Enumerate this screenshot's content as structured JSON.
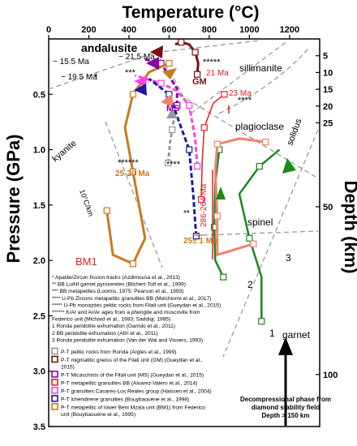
{
  "chart_data": {
    "type": "line",
    "xlabel": "Temperature (°C)",
    "ylabel": "Pressure (GPa)",
    "y2label": "Depth (km)",
    "xlim": [
      0,
      1350
    ],
    "ylim": [
      3.5,
      0
    ],
    "x_ticks": [
      "0",
      "200",
      "400",
      "600",
      "800",
      "1000",
      "1200"
    ],
    "y_ticks": [
      "0.5",
      "1.0",
      "1.5",
      "2.0",
      "2.5",
      "3.0",
      "3.5"
    ],
    "depth_ticks": [
      "5",
      "10",
      "15",
      "20",
      "25",
      "50",
      "100"
    ],
    "grid": false,
    "legend_position": "bottom-left",
    "colors": {
      "brown_bm1": "#c87a1e",
      "dark_red_gm": "#7a1010",
      "purple_ms": "#8b00a8",
      "pink": "#ff40e0",
      "blue": "#1a1aa0",
      "salmon": "#f08070",
      "green": "#1a8a1a",
      "red": "#e02020",
      "grey": "#999999"
    },
    "annotations": {
      "andalusite": "andalusite",
      "sillimanite": "sillimanite",
      "kyanite": "kyanite",
      "plagioclase": "plagioclase",
      "spinel": "spinel",
      "garnet": "garnet",
      "solidus": "solidus",
      "gradient": "10°C/km",
      "bm1": "BM1",
      "gm": "GM",
      "ms": "MS",
      "age_155": "~ 15.5 Ma",
      "age_215": "~ 21.5 Ma",
      "age_195": "~ 19.5 Ma",
      "age_21": "21 Ma",
      "age_23": "23 Ma",
      "age_2520": "25-20 Ma",
      "age_25pm1": "25± 1 Ma",
      "age_286": "286-264 Ma",
      "stars1": "*",
      "stars3": "***",
      "stars4": "****",
      "stars5": "*****",
      "stars6": "******",
      "stars2": "**",
      "num1": "1",
      "num2": "2",
      "num3": "3"
    },
    "footnote": {
      "line1": "Decompressional phase from",
      "line2": "diamond stability field",
      "line3": "Depth > 150 km"
    },
    "legend_notes": [
      "* Apatite/Zircon fission tracks (Azdimousa et al., 2013)",
      "** BB Lu/Hf garnet pyroxenites (Blichert-Toft et al., 1999)",
      "*** BB metapelites (Loomis, 1975; Pearson et al., 1993)",
      "**** U-Pb Zircons metapelitic granulites BB (Melchiorre et al., 2017)",
      "***** U-Pb monazites pelitic rocks from Filali unit (Gueydan et al., 2015)",
      "****** K/Ar and Ar/Ar ages from a phengite and muscovite from",
      "Federico unit (Michard et al., 1983; Saddiqi, 1995)",
      "1  Ronda peridotite exhumation (Garrido et al., 2011)",
      "2  BB peridotite exhumation (Afiri et al., 2011)",
      "3 Ronda peridotite exhumation (Van der Wal and Vissers, 1993)"
    ],
    "series": [
      {
        "name": "P-T pelitic rocks from Ronda (Argles et al., 1999)",
        "color": "#999999",
        "points": [
          [
            595,
            1.12
          ],
          [
            605,
            0.93
          ],
          [
            615,
            0.82
          ],
          [
            625,
            0.72
          ]
        ]
      },
      {
        "name": "P-T migmatitic gneiss of the Filali unit (GM) (Gueydan et al., 2015)",
        "color": "#7a1010",
        "points": [
          [
            740,
            0.32
          ],
          [
            745,
            0.22
          ],
          [
            730,
            0.12
          ],
          [
            700,
            0.05
          ],
          [
            660,
            0.03
          ],
          [
            630,
            0.05
          ]
        ]
      },
      {
        "name": "P-T Micaschists of the Filali unit (MS) (Gueydan et al., 2015)",
        "color": "#8b00a8",
        "points": [
          [
            640,
            0.6
          ],
          [
            640,
            0.45
          ],
          [
            560,
            0.22
          ],
          [
            470,
            0.18
          ]
        ]
      },
      {
        "name": "P-T metapelitic granulites BB (Alvarez-Valero et al., 2014)",
        "color": "#e02020",
        "points": [
          [
            760,
            1.45
          ],
          [
            765,
            1.1
          ],
          [
            775,
            0.8
          ],
          [
            820,
            0.58
          ],
          [
            875,
            0.5
          ]
        ]
      },
      {
        "name": "P-T granulites Casares-Los Reales group (Haissen et al., 2004)",
        "color": "#ff40e0",
        "points": [
          [
            740,
            1.15
          ],
          [
            730,
            0.9
          ],
          [
            700,
            0.6
          ],
          [
            640,
            0.47
          ],
          [
            560,
            0.4
          ],
          [
            430,
            0.33
          ]
        ]
      },
      {
        "name": "P-T lchendirene granulites (Bouybaouène et al., 1998)",
        "color": "#1a1aa0",
        "points": [
          [
            735,
            1.78
          ],
          [
            720,
            1.4
          ],
          [
            700,
            1.0
          ],
          [
            640,
            0.7
          ],
          [
            600,
            0.5
          ],
          [
            500,
            0.36
          ]
        ]
      },
      {
        "name": "P-T metapelitic of lower Beni Mzala unit (BM1) from Federico unit (Bouybaouène et al., 1995)",
        "color": "#c87a1e",
        "points": [
          [
            290,
            1.55
          ],
          [
            320,
            1.95
          ],
          [
            420,
            2.03
          ],
          [
            480,
            1.8
          ],
          [
            420,
            1.2
          ],
          [
            380,
            0.8
          ],
          [
            420,
            0.5
          ],
          [
            500,
            0.3
          ],
          [
            600,
            0.22
          ]
        ]
      },
      {
        "name": "1 Ronda peridotite exhumation",
        "color": "#1a8a1a",
        "points": [
          [
            1060,
            2.55
          ],
          [
            1060,
            2.15
          ],
          [
            1000,
            1.8
          ],
          [
            950,
            1.4
          ],
          [
            1050,
            1.15
          ],
          [
            1150,
            1.0
          ]
        ]
      },
      {
        "name": "2 BB peridotite exhumation",
        "color": "#1a8a1a",
        "points": [
          [
            870,
            2.15
          ],
          [
            830,
            2.0
          ],
          [
            825,
            1.7
          ],
          [
            830,
            1.3
          ],
          [
            850,
            1.0
          ]
        ]
      },
      {
        "name": "3 Ronda peridotite exhumation",
        "color": "#f08070",
        "points": [
          [
            1020,
            1.85
          ],
          [
            840,
            1.95
          ],
          [
            840,
            1.6
          ],
          [
            830,
            1.2
          ],
          [
            840,
            0.95
          ],
          [
            950,
            0.9
          ],
          [
            1080,
            0.93
          ]
        ]
      }
    ]
  }
}
